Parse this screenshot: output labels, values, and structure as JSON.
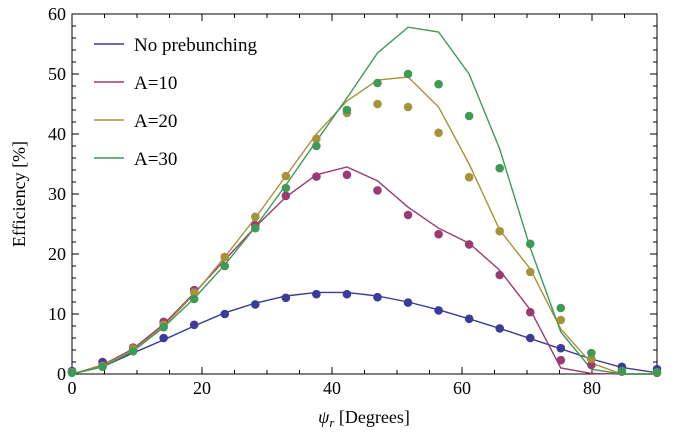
{
  "chart_data": {
    "type": "line",
    "title": "",
    "xlabel_symbol": "ψ",
    "xlabel_subscript": "r",
    "xlabel_rest": " [Degrees]",
    "ylabel": "Efficiency [%]",
    "xlim": [
      0,
      90
    ],
    "ylim": [
      0,
      60
    ],
    "xticks": [
      "0",
      "20",
      "40",
      "60",
      "80"
    ],
    "yticks": [
      "0",
      "10",
      "20",
      "30",
      "40",
      "50",
      "60"
    ],
    "grid": false,
    "legend_position": "top-left",
    "series": [
      {
        "name": "No prebunching",
        "color": "#3b3b9a",
        "line": {
          "x": [
            0,
            4.7,
            9.4,
            14.1,
            18.8,
            23.5,
            28.2,
            32.9,
            37.6,
            42.3,
            47,
            51.7,
            56.4,
            61.1,
            65.8,
            70.5,
            75.2,
            79.9,
            84.6,
            90
          ],
          "y": [
            0,
            1.2,
            3.5,
            5.7,
            8.0,
            10.2,
            11.8,
            13.0,
            13.6,
            13.6,
            13.0,
            12.0,
            10.7,
            9.2,
            7.6,
            5.9,
            4.2,
            2.5,
            1.1,
            0.2
          ]
        },
        "points": {
          "x": [
            0,
            4.7,
            9.4,
            14.1,
            18.8,
            23.5,
            28.2,
            32.9,
            37.6,
            42.3,
            47,
            51.7,
            56.4,
            61.1,
            65.8,
            70.5,
            75.2,
            79.9,
            84.6,
            90
          ],
          "y": [
            0.5,
            2.0,
            4.0,
            6.0,
            8.2,
            10.0,
            11.6,
            12.7,
            13.3,
            13.3,
            12.8,
            11.9,
            10.6,
            9.2,
            7.6,
            6.0,
            4.3,
            2.5,
            1.2,
            0.8
          ]
        }
      },
      {
        "name": "A=10",
        "color": "#9b3b73",
        "line": {
          "x": [
            0,
            4.7,
            9.4,
            14.1,
            18.8,
            23.5,
            28.2,
            32.9,
            37.6,
            42.3,
            47,
            51.7,
            56.4,
            61.1,
            65.8,
            70.5,
            75.2,
            79.9,
            84.6,
            90
          ],
          "y": [
            0,
            1.5,
            4.2,
            8.3,
            13.5,
            19.0,
            24.5,
            29.5,
            33.2,
            34.5,
            32.2,
            27.8,
            24.3,
            21.8,
            17.3,
            10.7,
            1.0,
            0.1,
            0.0,
            0.0
          ]
        },
        "points": {
          "x": [
            0,
            4.7,
            9.4,
            14.1,
            18.8,
            23.5,
            28.2,
            32.9,
            37.6,
            42.3,
            47,
            51.7,
            56.4,
            61.1,
            65.8,
            70.5,
            75.2,
            79.9,
            84.6,
            90
          ],
          "y": [
            0.3,
            1.5,
            4.4,
            8.7,
            14.0,
            19.5,
            24.8,
            29.7,
            32.9,
            33.2,
            30.6,
            26.5,
            23.3,
            21.6,
            16.5,
            10.3,
            2.3,
            1.5,
            0.4,
            0.2
          ]
        }
      },
      {
        "name": "A=20",
        "color": "#a8913b",
        "line": {
          "x": [
            0,
            4.7,
            9.4,
            14.1,
            18.8,
            23.5,
            28.2,
            32.9,
            37.6,
            42.3,
            47,
            51.7,
            56.4,
            61.1,
            65.8,
            70.5,
            75.2,
            79.9,
            84.6,
            90
          ],
          "y": [
            0,
            1.4,
            4.0,
            8.0,
            13.3,
            19.5,
            26.0,
            33.0,
            40.0,
            45.5,
            49.0,
            49.5,
            44.5,
            35.0,
            24.0,
            17.5,
            7.5,
            1.8,
            0.0,
            0.0
          ]
        },
        "points": {
          "x": [
            0,
            4.7,
            9.4,
            14.1,
            18.8,
            23.5,
            28.2,
            32.9,
            37.6,
            42.3,
            47,
            51.7,
            56.4,
            61.1,
            65.8,
            70.5,
            75.2,
            79.9,
            84.6,
            90
          ],
          "y": [
            0.3,
            1.3,
            4.2,
            8.2,
            13.6,
            19.5,
            26.2,
            33.0,
            39.2,
            43.5,
            45.0,
            44.5,
            40.2,
            32.8,
            23.8,
            17.0,
            9.0,
            2.5,
            0.5,
            0.3
          ]
        }
      },
      {
        "name": "A=30",
        "color": "#3f9a55",
        "line": {
          "x": [
            0,
            4.7,
            9.4,
            14.1,
            18.8,
            23.5,
            28.2,
            32.9,
            37.6,
            42.3,
            47,
            51.7,
            56.4,
            61.1,
            65.8,
            70.5,
            75.2,
            79.9,
            84.6,
            90
          ],
          "y": [
            0,
            1.2,
            3.8,
            7.8,
            12.6,
            18.2,
            24.5,
            31.5,
            38.8,
            46.0,
            53.5,
            57.8,
            57.0,
            50.0,
            37.5,
            21.0,
            7.0,
            0.8,
            0.0,
            0.0
          ]
        },
        "points": {
          "x": [
            0,
            4.7,
            9.4,
            14.1,
            18.8,
            23.5,
            28.2,
            32.9,
            37.6,
            42.3,
            47,
            51.7,
            56.4,
            61.1,
            65.8,
            70.5,
            75.2,
            79.9,
            84.6,
            90
          ],
          "y": [
            0.2,
            1.2,
            3.8,
            7.8,
            12.5,
            18.0,
            24.3,
            31.0,
            38.0,
            44.0,
            48.5,
            50.0,
            48.3,
            43.0,
            34.3,
            21.7,
            11.0,
            3.5,
            0.5,
            0.3
          ]
        }
      }
    ]
  }
}
